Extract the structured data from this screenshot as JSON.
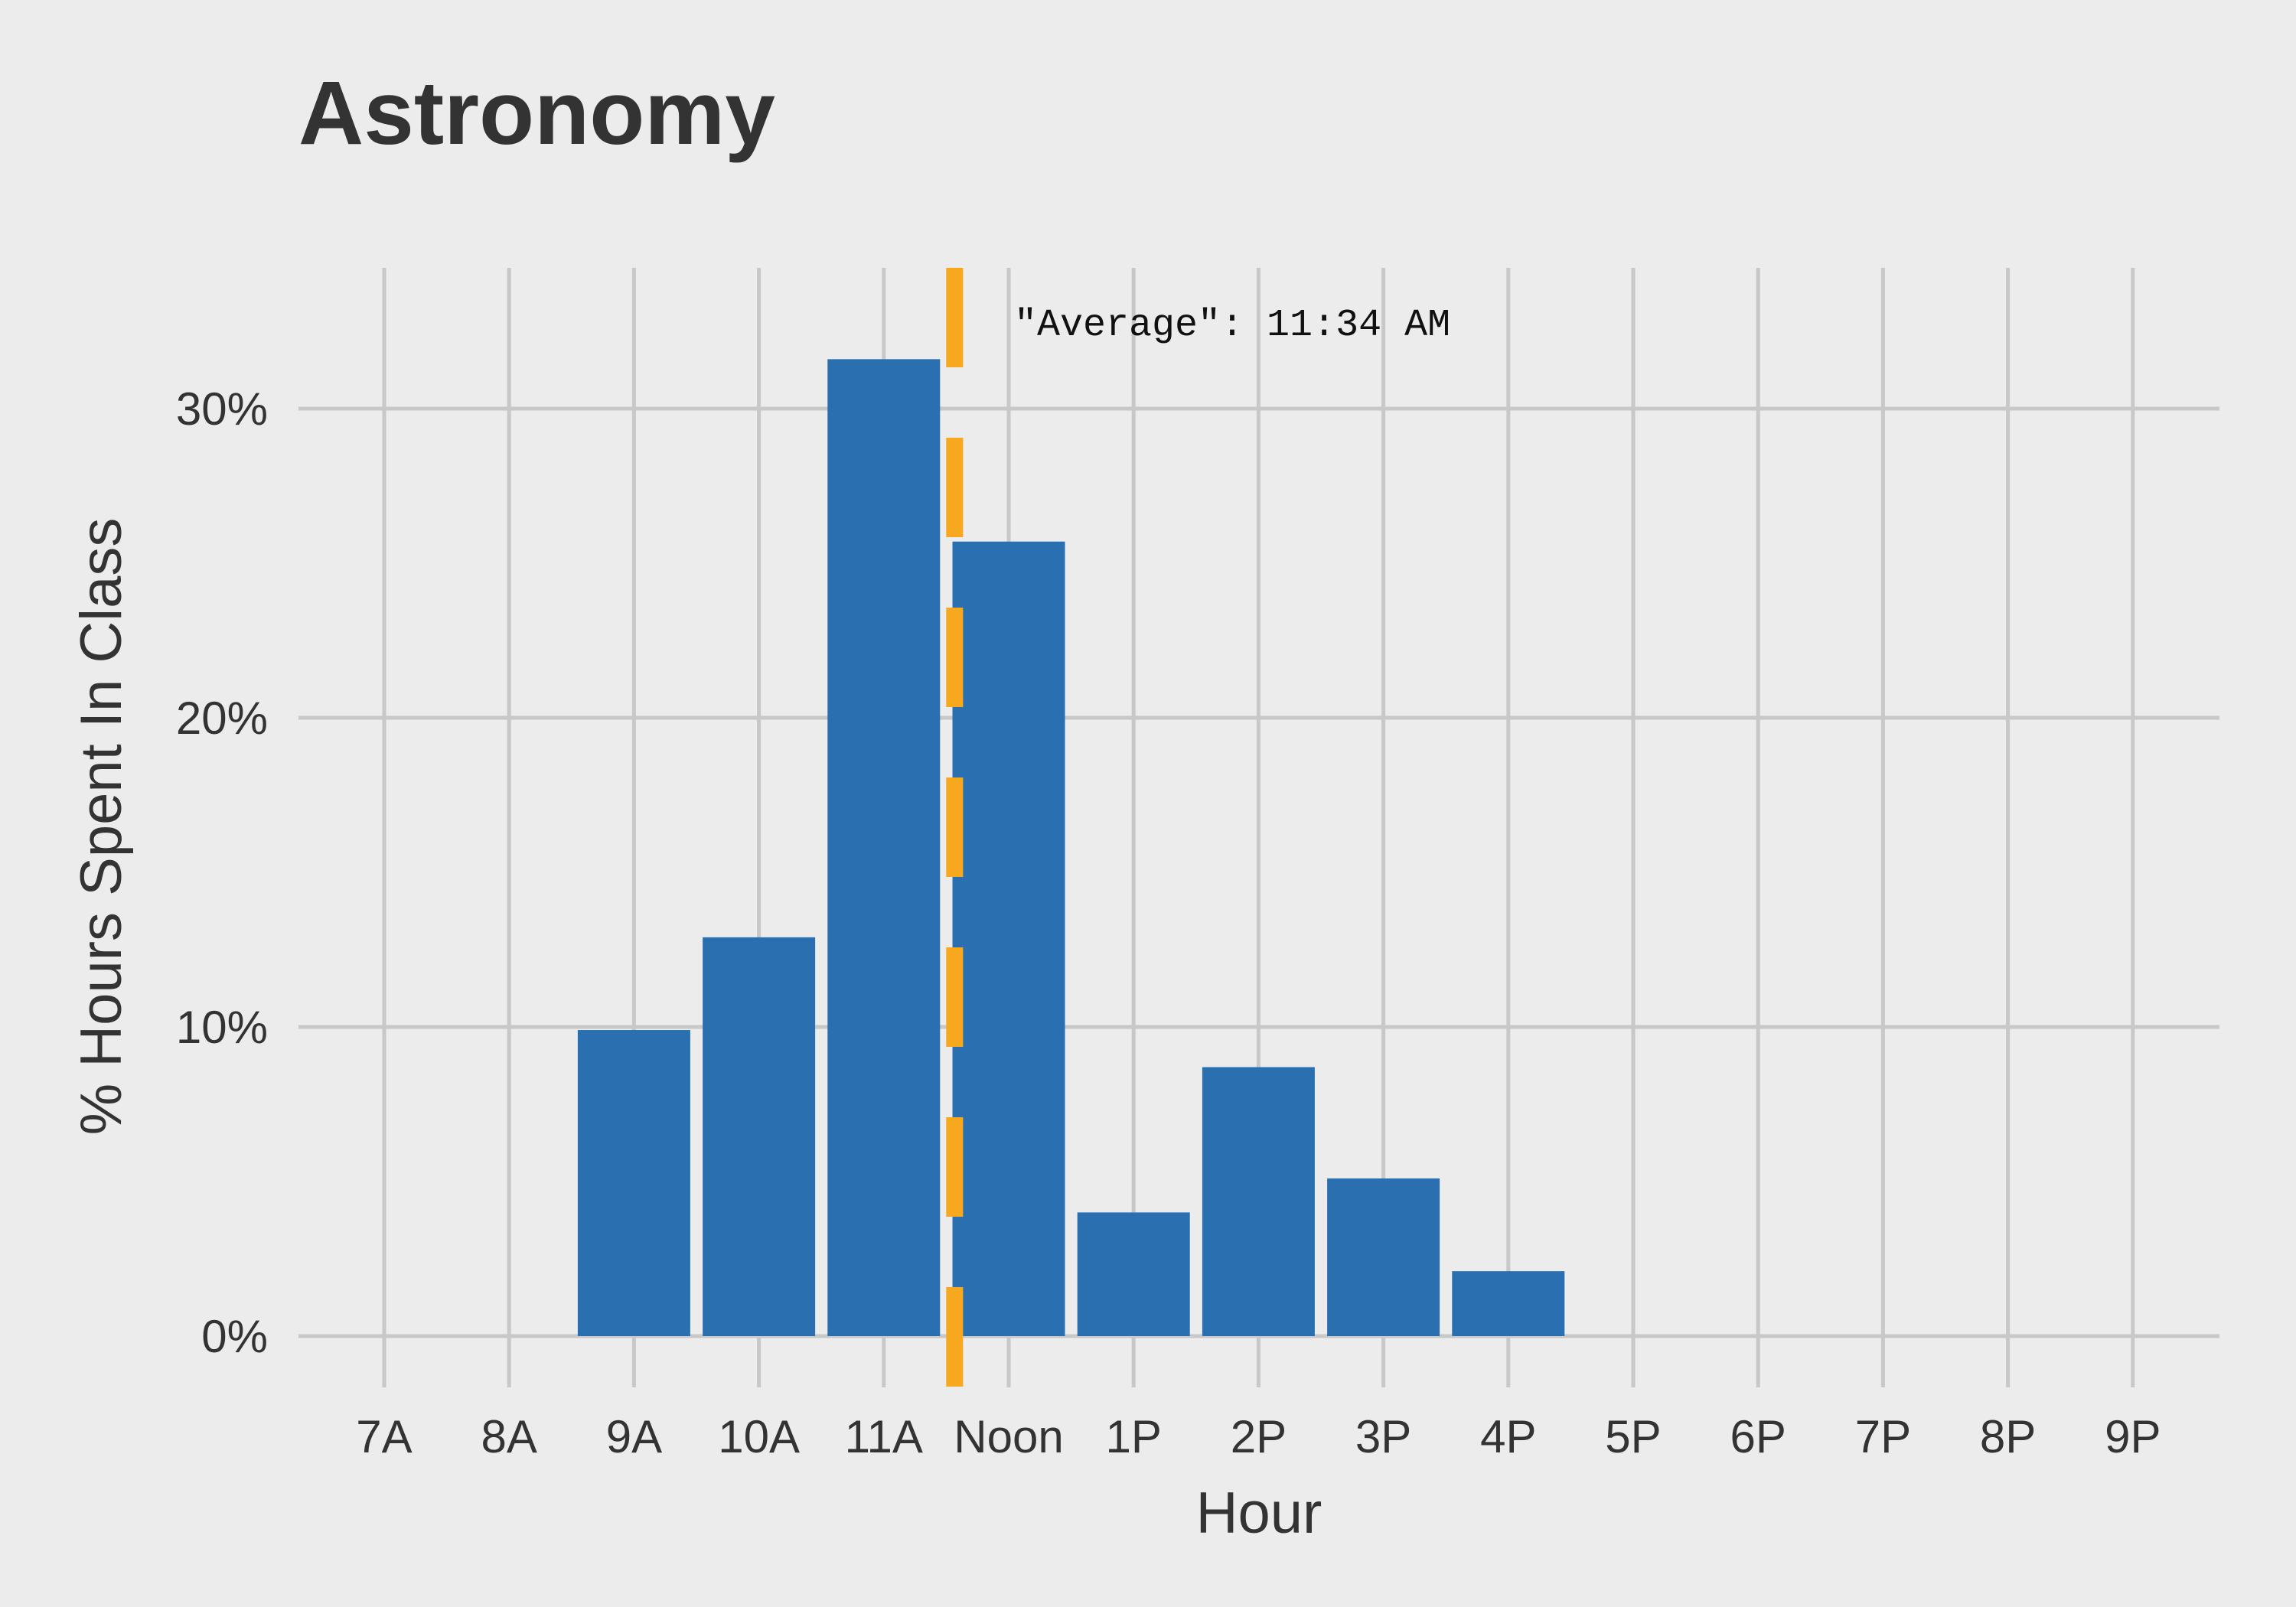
{
  "chart_data": {
    "type": "bar",
    "title": "Astronomy",
    "xlabel": "Hour",
    "ylabel": "% Hours Spent In Class",
    "categories": [
      "7A",
      "8A",
      "9A",
      "10A",
      "11A",
      "Noon",
      "1P",
      "2P",
      "3P",
      "4P",
      "5P",
      "6P",
      "7P",
      "8P",
      "9P"
    ],
    "values": [
      0,
      0,
      9.9,
      12.9,
      31.6,
      25.7,
      4.0,
      8.7,
      5.1,
      2.1,
      0,
      0,
      0,
      0,
      0
    ],
    "ylim": [
      0,
      33
    ],
    "yticks": [
      0,
      10,
      20,
      30
    ],
    "ytick_labels": [
      "0%",
      "10%",
      "20%",
      "30%"
    ],
    "grid": true,
    "legend": "none",
    "bar_color": "#2a6fb0",
    "reference_line": {
      "position_hours_after_7A": 4.567,
      "style": "dashed",
      "color": "#f7a81e",
      "label": "\"Average\": 11:34 AM"
    }
  }
}
